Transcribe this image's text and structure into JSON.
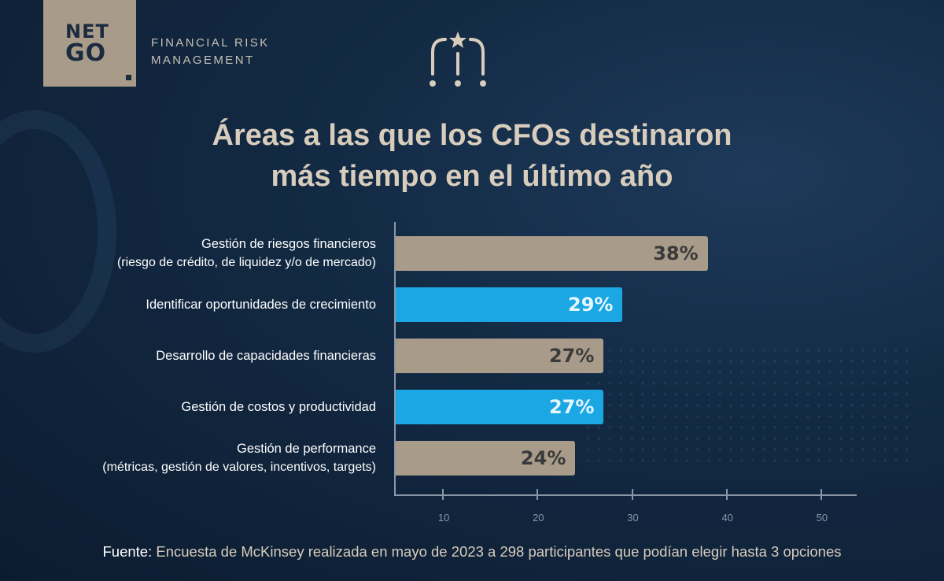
{
  "brand": {
    "logo_line1": "NET",
    "logo_line2": "GO",
    "tagline_line1": "FINANCIAL RISK",
    "tagline_line2": "MANAGEMENT"
  },
  "colors": {
    "tan": "#a89b8a",
    "blue": "#1ba7e4",
    "tan_value_text": "#3a3a3a",
    "blue_value_text": "#e6f6ff"
  },
  "icon": "team-star-icon",
  "source": {
    "label": "Fuente",
    "text": "Encuesta de McKinsey realizada en mayo de 2023 a 298 participantes que podían elegir hasta 3 opciones"
  },
  "chart_data": {
    "type": "bar",
    "orientation": "horizontal",
    "title_line1": "Áreas a las que los CFOs destinaron",
    "title_line2": "más tiempo en el último año",
    "categories": [
      {
        "label": "Gestión de riesgos financieros",
        "sublabel": "(riesgo de crédito, de liquidez y/o de mercado)",
        "value": 38,
        "value_label": "38%",
        "color": "tan"
      },
      {
        "label": "Identificar oportunidades de crecimiento",
        "sublabel": "",
        "value": 29,
        "value_label": "29%",
        "color": "blue"
      },
      {
        "label": "Desarrollo de capacidades financieras",
        "sublabel": "",
        "value": 27,
        "value_label": "27%",
        "color": "tan"
      },
      {
        "label": "Gestión de costos y productividad",
        "sublabel": "",
        "value": 27,
        "value_label": "27%",
        "color": "blue"
      },
      {
        "label": "Gestión de performance",
        "sublabel": "(métricas, gestión de valores, incentivos, targets)",
        "value": 24,
        "value_label": "24%",
        "color": "tan"
      }
    ],
    "xticks": [
      10,
      20,
      30,
      40,
      50
    ],
    "xlim": [
      5,
      54
    ],
    "grid": false
  }
}
